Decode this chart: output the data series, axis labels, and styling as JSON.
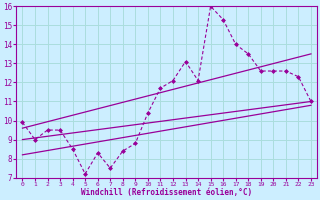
{
  "xlabel": "Windchill (Refroidissement éolien,°C)",
  "bg_color": "#cceeff",
  "grid_color": "#aadddd",
  "line_color": "#990099",
  "xlim": [
    -0.5,
    23.5
  ],
  "ylim": [
    7,
    16
  ],
  "yticks": [
    7,
    8,
    9,
    10,
    11,
    12,
    13,
    14,
    15,
    16
  ],
  "xticks": [
    0,
    1,
    2,
    3,
    4,
    5,
    6,
    7,
    8,
    9,
    10,
    11,
    12,
    13,
    14,
    15,
    16,
    17,
    18,
    19,
    20,
    21,
    22,
    23
  ],
  "main_x": [
    0,
    1,
    2,
    3,
    4,
    5,
    6,
    7,
    8,
    9,
    10,
    11,
    12,
    13,
    14,
    15,
    16,
    17,
    18,
    19,
    20,
    21,
    22,
    23
  ],
  "main_y": [
    9.9,
    9.0,
    9.5,
    9.5,
    8.5,
    7.2,
    8.3,
    7.5,
    8.4,
    8.8,
    10.4,
    11.7,
    12.1,
    13.1,
    12.1,
    16.0,
    15.3,
    14.0,
    13.5,
    12.6,
    12.6,
    12.6,
    12.3,
    11.0
  ],
  "line2_x": [
    0,
    23
  ],
  "line2_y": [
    9.6,
    13.5
  ],
  "line3_x": [
    0,
    23
  ],
  "line3_y": [
    9.0,
    11.0
  ],
  "line4_x": [
    0,
    23
  ],
  "line4_y": [
    8.2,
    10.8
  ]
}
